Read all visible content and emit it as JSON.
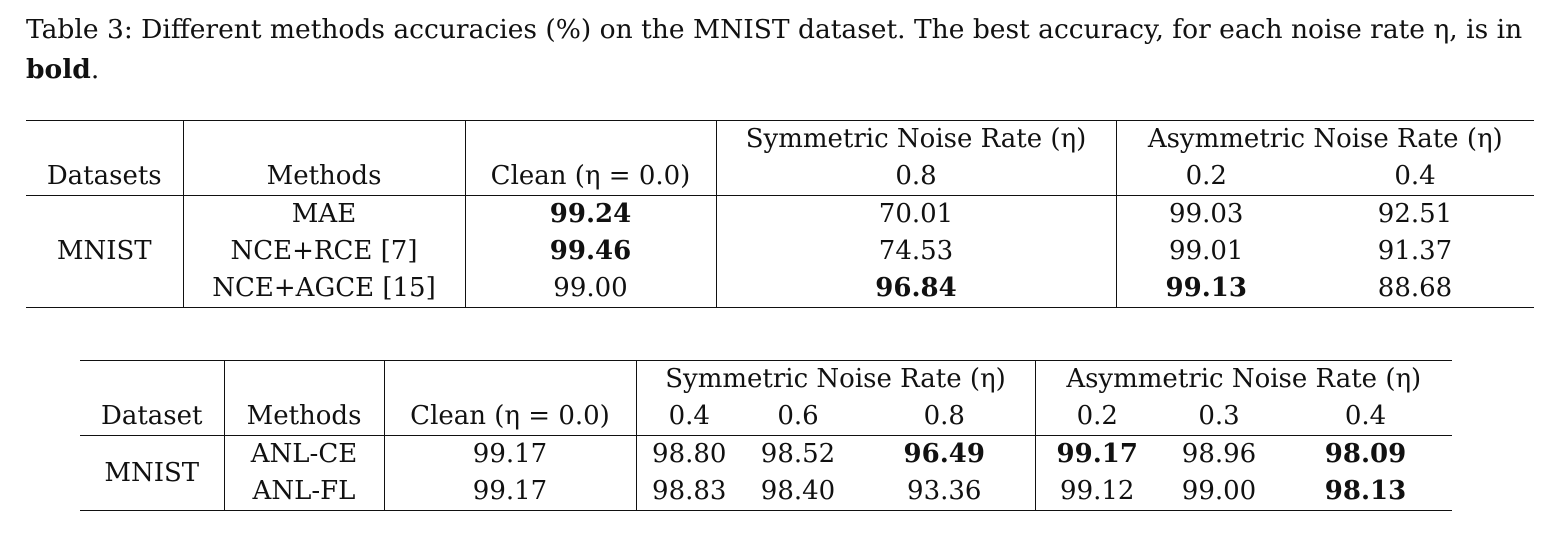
{
  "caption": {
    "prefix": "Table 3: Different methods accuracies (%) on the MNIST dataset. The best accuracy, for each noise rate η, is in ",
    "bold": "bold",
    "suffix": "."
  },
  "table1": {
    "header_group": [
      "Symmetric Noise Rate (η)",
      "Asymmetric Noise Rate (η)"
    ],
    "headers": [
      "Datasets",
      "Methods",
      "Clean (η = 0.0)",
      "0.8",
      "0.2",
      "0.4"
    ],
    "dataset": "MNIST",
    "rows": [
      {
        "method": "MAE",
        "clean": "99.24",
        "s08": "70.01",
        "a02": "99.03",
        "a04": "92.51"
      },
      {
        "method": "NCE+RCE [7]",
        "clean": "99.46",
        "s08": "74.53",
        "a02": "99.01",
        "a04": "91.37"
      },
      {
        "method": "NCE+AGCE [15]",
        "clean": "99.00",
        "s08": "96.84",
        "a02": "99.13",
        "a04": "88.68"
      }
    ]
  },
  "table2": {
    "header_group": [
      "Symmetric Noise Rate (η)",
      "Asymmetric Noise Rate (η)"
    ],
    "headers": [
      "Dataset",
      "Methods",
      "Clean (η = 0.0)",
      "0.4",
      "0.6",
      "0.8",
      "0.2",
      "0.3",
      "0.4"
    ],
    "dataset": "MNIST",
    "rows": [
      {
        "method": "ANL-CE",
        "clean": "99.17",
        "s04": "98.80",
        "s06": "98.52",
        "s08": "96.49",
        "a02": "99.17",
        "a03": "98.96",
        "a04": "98.09"
      },
      {
        "method": "ANL-FL",
        "clean": "99.17",
        "s04": "98.83",
        "s06": "98.40",
        "s08": "93.36",
        "a02": "99.12",
        "a03": "99.00",
        "a04": "98.13"
      }
    ]
  }
}
